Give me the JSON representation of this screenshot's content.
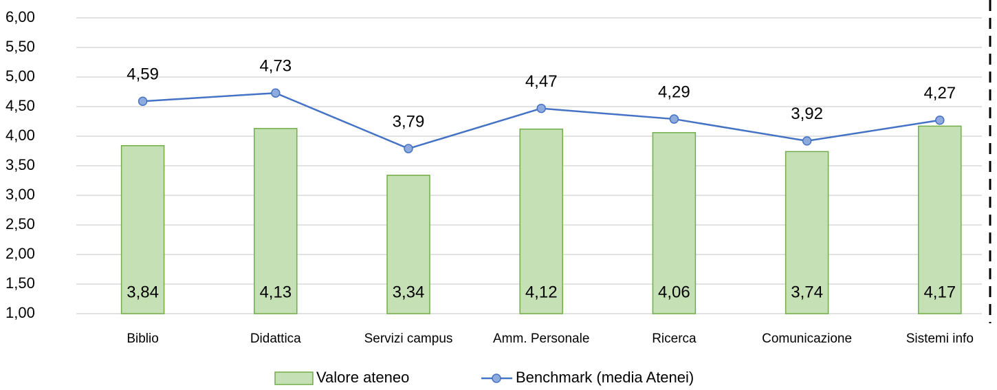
{
  "chart_data": {
    "type": "combo",
    "categories": [
      "Biblio",
      "Didattica",
      "Servizi campus",
      "Amm. Personale",
      "Ricerca",
      "Comunicazione",
      "Sistemi info"
    ],
    "series": [
      {
        "name": "Valore ateneo",
        "type": "bar",
        "color": "#c5e0b4",
        "edge_color": "#70ad47",
        "values": [
          3.84,
          4.13,
          3.34,
          4.12,
          4.06,
          3.74,
          4.17
        ],
        "value_labels": [
          "3,84",
          "4,13",
          "3,34",
          "4,12",
          "4,06",
          "3,74",
          "4,17"
        ]
      },
      {
        "name": "Benchmark (media Atenei)",
        "type": "line",
        "color": "#4472c4",
        "marker_color": "#8faadc",
        "values": [
          4.59,
          4.73,
          3.79,
          4.47,
          4.29,
          3.92,
          4.27
        ],
        "value_labels": [
          "4,59",
          "4,73",
          "3,79",
          "4,47",
          "4,29",
          "3,92",
          "4,27"
        ]
      }
    ],
    "ylim": [
      1,
      6
    ],
    "yticks": [
      {
        "value": 1,
        "label": "1,00"
      },
      {
        "value": 1.5,
        "label": "1,50"
      },
      {
        "value": 2,
        "label": "2,00"
      },
      {
        "value": 2.5,
        "label": "2,50"
      },
      {
        "value": 3,
        "label": "3,00"
      },
      {
        "value": 3.5,
        "label": "3,50"
      },
      {
        "value": 4,
        "label": "4,00"
      },
      {
        "value": 4.5,
        "label": "4,50"
      },
      {
        "value": 5,
        "label": "5,00"
      },
      {
        "value": 5.5,
        "label": "5,50"
      },
      {
        "value": 6,
        "label": "6,00"
      }
    ],
    "grid": true,
    "legend": "bottom"
  }
}
